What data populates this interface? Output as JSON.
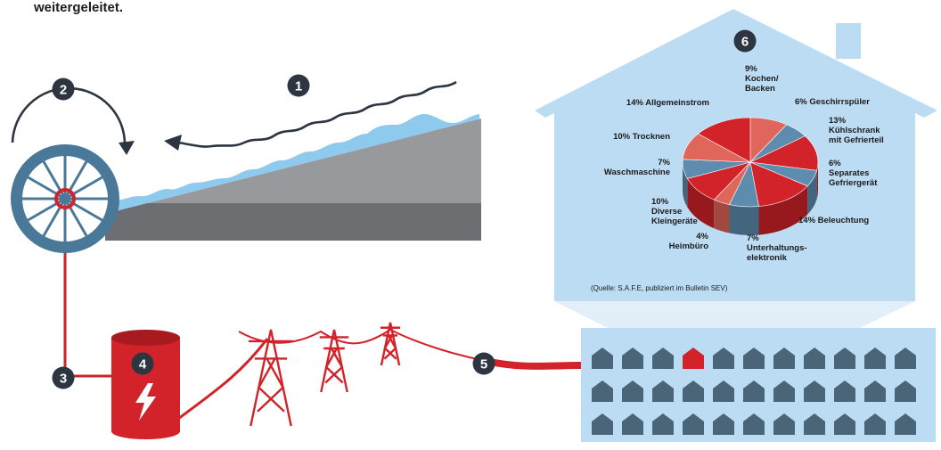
{
  "header_text": "weitergeleitet.",
  "steps": [
    "1",
    "2",
    "3",
    "4",
    "5",
    "6"
  ],
  "source_note": "(Quelle: S.A.F.E, publiziert im Bulletin SEV)",
  "colors": {
    "red": "#d2232a",
    "dark_red": "#a81a20",
    "light_red": "#e0655a",
    "pie_blue": "#5d8cae",
    "sky": "#bcdcf3",
    "house_dark": "#4b6578",
    "badge": "#2d3540",
    "water": "#8ec9ee"
  },
  "icons": [
    "wave-arrow-icon",
    "rotation-arrow-icon",
    "water-wheel-icon",
    "lightning-icon",
    "pylon-icon",
    "house-icon"
  ],
  "chart_data": {
    "type": "pie",
    "title": "",
    "slices": [
      {
        "label_lines": [
          "9%",
          "Kochen/",
          "Backen"
        ],
        "value": 9
      },
      {
        "label_lines": [
          "6% Geschirrspüler"
        ],
        "value": 6
      },
      {
        "label_lines": [
          "13%",
          "Kühlschrank",
          "mit Gefrierteil"
        ],
        "value": 13
      },
      {
        "label_lines": [
          "6%",
          "Separates",
          "Gefriergerät"
        ],
        "value": 6
      },
      {
        "label_lines": [
          "14% Beleuchtung"
        ],
        "value": 14
      },
      {
        "label_lines": [
          "7%",
          "Unterhaltungs-",
          "elektronik"
        ],
        "value": 7
      },
      {
        "label_lines": [
          "4%",
          "Heimbüro"
        ],
        "value": 4
      },
      {
        "label_lines": [
          "10%",
          "Diverse",
          "Kleingeräte"
        ],
        "value": 10
      },
      {
        "label_lines": [
          "7%",
          "Waschmaschine"
        ],
        "value": 7
      },
      {
        "label_lines": [
          "10% Trocknen"
        ],
        "value": 10
      },
      {
        "label_lines": [
          "14% Allgemeinstrom"
        ],
        "value": 14
      }
    ],
    "colors": [
      "#e0655a",
      "#5d8cae",
      "#d2232a",
      "#5d8cae",
      "#d2232a",
      "#5d8cae",
      "#e0655a",
      "#d2232a",
      "#5d8cae",
      "#e0655a",
      "#d2232a"
    ],
    "legend": "none"
  }
}
